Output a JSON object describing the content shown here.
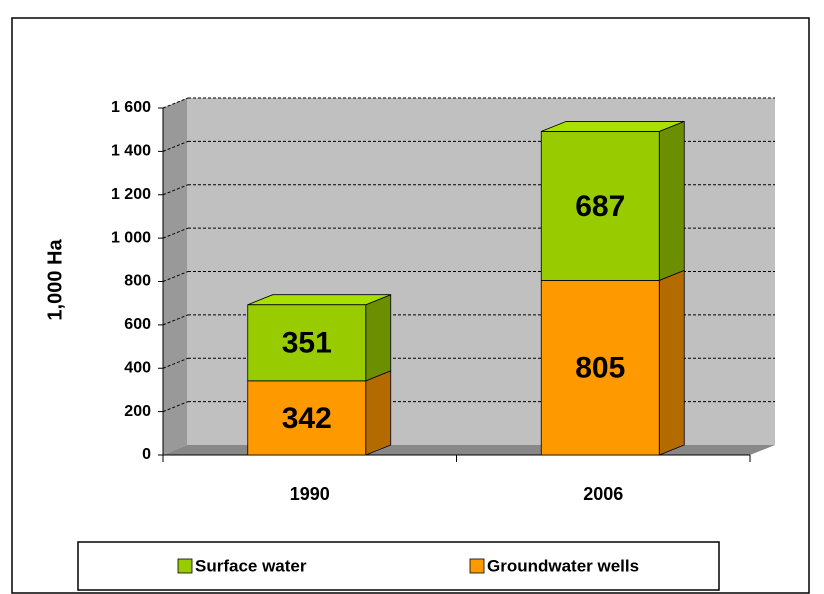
{
  "chart_data": {
    "type": "bar3d_stacked",
    "y_label": "1,000 Ha",
    "categories": [
      "1990",
      "2006"
    ],
    "series": [
      {
        "name": "Groundwater wells",
        "color": "#ff9900",
        "values": [
          342,
          805
        ]
      },
      {
        "name": "Surface water",
        "color": "#99cc00",
        "values": [
          351,
          687
        ]
      }
    ],
    "ylim": [
      0,
      1600
    ],
    "yticks": [
      0,
      200,
      400,
      600,
      800,
      {
        "value": 1000,
        "label": "1 000"
      },
      {
        "value": 1200,
        "label": "1 200"
      },
      {
        "value": 1400,
        "label": "1 400"
      },
      {
        "value": 1600,
        "label": "1 600"
      }
    ],
    "grid": true,
    "legend": "bottom"
  }
}
